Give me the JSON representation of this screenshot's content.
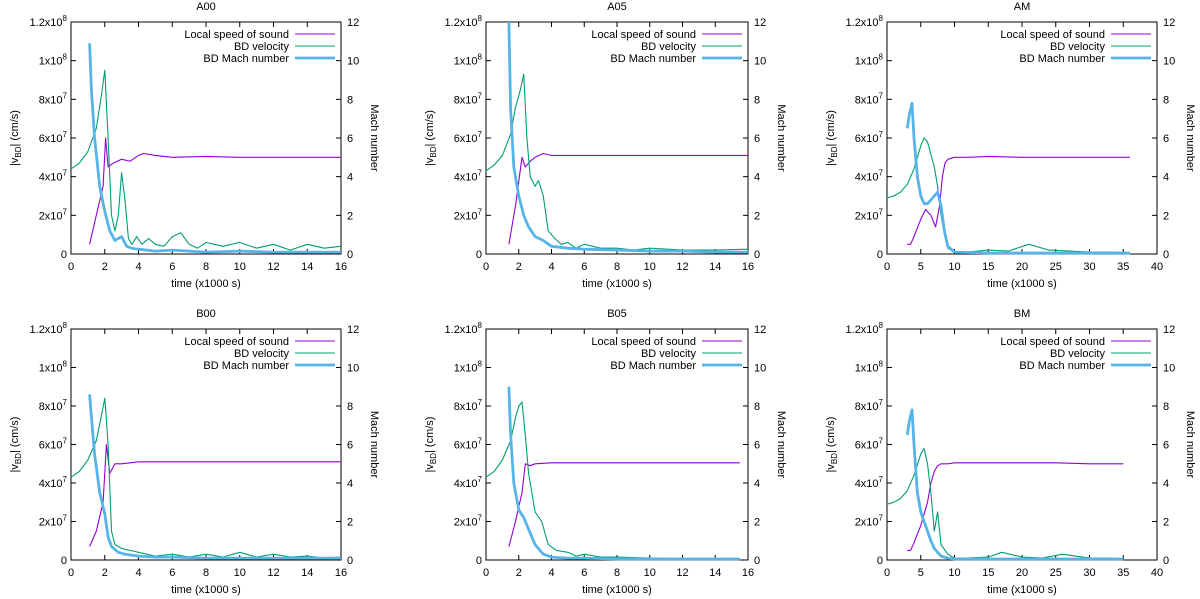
{
  "figure": {
    "left_ylabel_main": "|v",
    "left_ylabel_sub": "BD",
    "left_ylabel_tail": "| (cm/s)",
    "right_ylabel": "Mach number",
    "xlabel": "time (x1000 s)",
    "legend": [
      "Local speed of sound",
      "BD velocity",
      "BD Mach number"
    ],
    "left_tick_labels": [
      "0",
      "2x10^7",
      "4x10^7",
      "6x10^7",
      "8x10^7",
      "1x10^8",
      "1.2x10^8"
    ],
    "colors": {
      "sound": "#9400d3",
      "velocity": "#009e73",
      "mach": "#56b4e9",
      "frame": "#000000"
    }
  },
  "chart_data": [
    {
      "type": "line",
      "title": "A00",
      "xlabel": "time (x1000 s)",
      "ylabel": "|vBD| (cm/s)",
      "y2label": "Mach number",
      "xlim": [
        0,
        16
      ],
      "ylim": [
        0,
        120000000
      ],
      "y2lim": [
        0,
        12
      ],
      "xticks": [
        0,
        2,
        4,
        6,
        8,
        10,
        12,
        14,
        16
      ],
      "series": [
        {
          "name": "Local speed of sound",
          "axis": "left",
          "x": [
            1.1,
            1.5,
            1.9,
            2.05,
            2.2,
            2.5,
            3.0,
            3.5,
            4.0,
            4.3,
            5.0,
            6.0,
            8.0,
            10.0,
            12.0,
            14.0,
            16.0
          ],
          "y": [
            5000000,
            20000000,
            35000000,
            60000000,
            45000000,
            47000000,
            49000000,
            48000000,
            51000000,
            52000000,
            51000000,
            50000000,
            50500000,
            50000000,
            50000000,
            50000000,
            50000000
          ]
        },
        {
          "name": "BD velocity",
          "axis": "left",
          "x": [
            0,
            0.5,
            1.0,
            1.5,
            1.8,
            2.0,
            2.2,
            2.4,
            2.6,
            2.8,
            3.0,
            3.2,
            3.4,
            3.6,
            3.9,
            4.2,
            4.6,
            5.0,
            5.5,
            6.0,
            6.5,
            7.0,
            7.5,
            8.0,
            9.0,
            10.0,
            11.0,
            12.0,
            13.0,
            14.0,
            15.0,
            16.0
          ],
          "y": [
            44000000,
            47000000,
            53000000,
            65000000,
            82000000,
            95000000,
            60000000,
            20000000,
            12000000,
            20000000,
            42000000,
            28000000,
            8000000,
            5000000,
            9000000,
            5000000,
            8000000,
            5000000,
            4000000,
            9000000,
            11000000,
            5000000,
            3000000,
            6000000,
            4000000,
            6000000,
            3000000,
            5000000,
            2000000,
            5000000,
            3000000,
            4000000
          ]
        },
        {
          "name": "BD Mach number",
          "axis": "right",
          "x": [
            1.1,
            1.2,
            1.4,
            1.7,
            2.0,
            2.3,
            2.6,
            3.0,
            3.3,
            3.6,
            4.0,
            5.0,
            6.0,
            8.0,
            10.0,
            12.0,
            14.0,
            16.0
          ],
          "y": [
            10.9,
            8.6,
            6.0,
            3.5,
            2.2,
            1.2,
            0.7,
            0.9,
            0.4,
            0.3,
            0.25,
            0.15,
            0.2,
            0.1,
            0.15,
            0.1,
            0.1,
            0.1
          ]
        }
      ]
    },
    {
      "type": "line",
      "title": "A05",
      "xlabel": "time (x1000 s)",
      "ylabel": "|vBD| (cm/s)",
      "y2label": "Mach number",
      "xlim": [
        0,
        16
      ],
      "ylim": [
        0,
        120000000
      ],
      "y2lim": [
        0,
        12
      ],
      "xticks": [
        0,
        2,
        4,
        6,
        8,
        10,
        12,
        14,
        16
      ],
      "series": [
        {
          "name": "Local speed of sound",
          "axis": "left",
          "x": [
            1.4,
            1.8,
            2.2,
            2.4,
            2.7,
            3.0,
            3.5,
            4.0,
            6.0,
            8.0,
            10.0,
            12.0,
            14.0,
            16.0
          ],
          "y": [
            5000000,
            25000000,
            50000000,
            45000000,
            48000000,
            50000000,
            52000000,
            51000000,
            51000000,
            51000000,
            51000000,
            51000000,
            51000000,
            51000000
          ]
        },
        {
          "name": "BD velocity",
          "axis": "left",
          "x": [
            0,
            0.5,
            1.0,
            1.5,
            1.8,
            2.1,
            2.3,
            2.5,
            2.7,
            3.0,
            3.2,
            3.5,
            3.8,
            4.2,
            4.6,
            5.0,
            5.5,
            6.0,
            7.0,
            8.0,
            9.0,
            10.0,
            12.0,
            14.0,
            16.0
          ],
          "y": [
            43000000,
            46000000,
            51000000,
            62000000,
            76000000,
            85000000,
            93000000,
            60000000,
            40000000,
            35000000,
            38000000,
            30000000,
            12000000,
            8000000,
            5000000,
            6000000,
            3000000,
            5000000,
            3000000,
            3000000,
            2000000,
            3000000,
            2000000,
            2000000,
            2500000
          ]
        },
        {
          "name": "BD Mach number",
          "axis": "right",
          "x": [
            1.4,
            1.5,
            1.7,
            2.0,
            2.3,
            2.6,
            3.0,
            3.5,
            4.0,
            5.0,
            6.0,
            8.0,
            10.0,
            12.0,
            14.0,
            16.0
          ],
          "y": [
            12.0,
            7.5,
            4.5,
            3.0,
            2.0,
            1.4,
            0.9,
            0.7,
            0.4,
            0.3,
            0.25,
            0.2,
            0.15,
            0.15,
            0.1,
            0.1
          ]
        }
      ]
    },
    {
      "type": "line",
      "title": "AM",
      "xlabel": "time (x1000 s)",
      "ylabel": "|vBD| (cm/s)",
      "y2label": "Mach number",
      "xlim": [
        0,
        40
      ],
      "ylim": [
        0,
        120000000
      ],
      "y2lim": [
        0,
        12
      ],
      "xticks": [
        0,
        5,
        10,
        15,
        20,
        25,
        30,
        35,
        40
      ],
      "series": [
        {
          "name": "Local speed of sound",
          "axis": "left",
          "x": [
            3.0,
            3.5,
            4.0,
            5.0,
            5.7,
            6.5,
            7.2,
            7.8,
            8.2,
            8.6,
            9.0,
            10.0,
            12.0,
            15.0,
            20.0,
            25.0,
            30.0,
            36.0
          ],
          "y": [
            5000000,
            5000000,
            9000000,
            18000000,
            23000000,
            20000000,
            14000000,
            25000000,
            40000000,
            47000000,
            49000000,
            50000000,
            50000000,
            50500000,
            50000000,
            50000000,
            50000000,
            50000000
          ]
        },
        {
          "name": "BD velocity",
          "axis": "left",
          "x": [
            0,
            1.0,
            2.0,
            3.0,
            4.0,
            5.0,
            5.5,
            6.0,
            7.0,
            7.5,
            8.0,
            8.5,
            9.0,
            10.0,
            12.0,
            15.0,
            18.0,
            21.0,
            24.0,
            27.0,
            30.0,
            33.0,
            36.0
          ],
          "y": [
            29000000,
            30000000,
            32000000,
            36000000,
            44000000,
            56000000,
            60000000,
            58000000,
            45000000,
            35000000,
            20000000,
            10000000,
            3000000,
            1000000,
            1000000,
            2000000,
            1500000,
            5000000,
            2000000,
            1500000,
            1000000,
            1000000,
            500000
          ]
        },
        {
          "name": "BD Mach number",
          "axis": "right",
          "x": [
            3.0,
            3.3,
            3.7,
            4.0,
            4.5,
            5.0,
            5.5,
            6.0,
            6.5,
            7.0,
            7.5,
            8.0,
            8.5,
            9.0,
            10.0,
            15.0,
            20.0,
            25.0,
            30.0,
            36.0
          ],
          "y": [
            6.5,
            7.2,
            7.8,
            6.0,
            4.0,
            3.0,
            2.6,
            2.6,
            2.8,
            3.0,
            3.2,
            2.5,
            1.2,
            0.4,
            0.1,
            0.05,
            0.05,
            0.05,
            0.05,
            0.05
          ]
        }
      ]
    },
    {
      "type": "line",
      "title": "B00",
      "xlabel": "time (x1000 s)",
      "ylabel": "|vBD| (cm/s)",
      "y2label": "Mach number",
      "xlim": [
        0,
        16
      ],
      "ylim": [
        0,
        120000000
      ],
      "y2lim": [
        0,
        12
      ],
      "xticks": [
        0,
        2,
        4,
        6,
        8,
        10,
        12,
        14,
        16
      ],
      "series": [
        {
          "name": "Local speed of sound",
          "axis": "left",
          "x": [
            1.1,
            1.5,
            1.9,
            2.1,
            2.3,
            2.6,
            3.0,
            4.0,
            6.0,
            8.0,
            10.0,
            12.0,
            14.0,
            16.0
          ],
          "y": [
            7000000,
            15000000,
            30000000,
            60000000,
            45000000,
            50000000,
            50000000,
            51000000,
            51000000,
            51000000,
            51000000,
            51000000,
            51000000,
            51000000
          ]
        },
        {
          "name": "BD velocity",
          "axis": "left",
          "x": [
            0,
            0.5,
            1.0,
            1.5,
            1.8,
            2.0,
            2.2,
            2.4,
            2.6,
            3.0,
            3.5,
            4.0,
            5.0,
            6.0,
            7.0,
            8.0,
            9.0,
            10.0,
            11.0,
            12.0,
            13.0,
            14.0,
            15.0,
            16.0
          ],
          "y": [
            43000000,
            46000000,
            52000000,
            62000000,
            75000000,
            84000000,
            60000000,
            15000000,
            8000000,
            6000000,
            5000000,
            4000000,
            2000000,
            3000000,
            1500000,
            3000000,
            1500000,
            4000000,
            1500000,
            3000000,
            1500000,
            2000000,
            1000000,
            1500000
          ]
        },
        {
          "name": "BD Mach number",
          "axis": "right",
          "x": [
            1.1,
            1.2,
            1.4,
            1.7,
            2.0,
            2.2,
            2.4,
            2.8,
            3.2,
            4.0,
            5.0,
            6.0,
            8.0,
            10.0,
            12.0,
            14.0,
            16.0
          ],
          "y": [
            8.6,
            7.5,
            5.5,
            3.5,
            2.4,
            1.2,
            0.7,
            0.4,
            0.3,
            0.2,
            0.15,
            0.15,
            0.1,
            0.1,
            0.1,
            0.1,
            0.1
          ]
        }
      ]
    },
    {
      "type": "line",
      "title": "B05",
      "xlabel": "time (x1000 s)",
      "ylabel": "|vBD| (cm/s)",
      "y2label": "Mach number",
      "xlim": [
        0,
        16
      ],
      "ylim": [
        0,
        120000000
      ],
      "y2lim": [
        0,
        12
      ],
      "xticks": [
        0,
        2,
        4,
        6,
        8,
        10,
        12,
        14,
        16
      ],
      "series": [
        {
          "name": "Local speed of sound",
          "axis": "left",
          "x": [
            1.4,
            1.8,
            2.2,
            2.4,
            2.7,
            3.0,
            4.0,
            6.0,
            8.0,
            10.0,
            12.0,
            14.0,
            15.5
          ],
          "y": [
            7000000,
            20000000,
            35000000,
            50000000,
            49000000,
            50000000,
            50500000,
            50500000,
            50500000,
            50500000,
            50500000,
            50500000,
            50500000
          ]
        },
        {
          "name": "BD velocity",
          "axis": "left",
          "x": [
            0,
            0.5,
            1.0,
            1.5,
            1.8,
            2.0,
            2.2,
            2.4,
            2.6,
            3.0,
            3.4,
            3.8,
            4.3,
            5.0,
            5.5,
            6.0,
            7.0,
            8.0,
            10.0,
            12.0,
            14.0,
            15.5
          ],
          "y": [
            43000000,
            46000000,
            52000000,
            62000000,
            74000000,
            80000000,
            82000000,
            65000000,
            45000000,
            25000000,
            20000000,
            8000000,
            5000000,
            4000000,
            2000000,
            3000000,
            1500000,
            1500000,
            1000000,
            800000,
            600000,
            500000
          ]
        },
        {
          "name": "BD Mach number",
          "axis": "right",
          "x": [
            1.4,
            1.5,
            1.7,
            2.0,
            2.3,
            2.6,
            3.0,
            3.5,
            4.0,
            5.0,
            6.0,
            8.0,
            10.0,
            12.0,
            14.0,
            15.5
          ],
          "y": [
            9.0,
            6.5,
            4.0,
            2.6,
            2.2,
            1.6,
            0.8,
            0.3,
            0.15,
            0.1,
            0.1,
            0.05,
            0.05,
            0.05,
            0.05,
            0.05
          ]
        }
      ]
    },
    {
      "type": "line",
      "title": "BM",
      "xlabel": "time (x1000 s)",
      "ylabel": "|vBD| (cm/s)",
      "y2label": "Mach number",
      "xlim": [
        0,
        40
      ],
      "ylim": [
        0,
        120000000
      ],
      "y2lim": [
        0,
        12
      ],
      "xticks": [
        0,
        5,
        10,
        15,
        20,
        25,
        30,
        35,
        40
      ],
      "series": [
        {
          "name": "Local speed of sound",
          "axis": "left",
          "x": [
            3.0,
            3.5,
            4.0,
            5.0,
            6.0,
            6.5,
            7.0,
            7.5,
            8.0,
            9.0,
            10.0,
            15.0,
            20.0,
            25.0,
            30.0,
            35.0
          ],
          "y": [
            5000000,
            5000000,
            9000000,
            18000000,
            30000000,
            40000000,
            46000000,
            49000000,
            50000000,
            50000000,
            50500000,
            50500000,
            50500000,
            50500000,
            50000000,
            50000000
          ]
        },
        {
          "name": "BD velocity",
          "axis": "left",
          "x": [
            0,
            1.0,
            2.0,
            3.0,
            4.0,
            5.0,
            5.5,
            6.0,
            6.5,
            7.0,
            7.5,
            8.0,
            9.0,
            10.0,
            12.0,
            15.0,
            17.0,
            20.0,
            23.0,
            26.0,
            30.0,
            33.0,
            35.0
          ],
          "y": [
            29000000,
            30000000,
            32000000,
            36000000,
            44000000,
            55000000,
            58000000,
            50000000,
            35000000,
            15000000,
            25000000,
            8000000,
            3000000,
            1000000,
            1000000,
            1500000,
            4000000,
            1500000,
            1000000,
            3000000,
            1000000,
            1000000,
            500000
          ]
        },
        {
          "name": "BD Mach number",
          "axis": "right",
          "x": [
            3.0,
            3.3,
            3.7,
            4.0,
            4.5,
            5.0,
            5.5,
            6.0,
            6.5,
            7.0,
            8.0,
            9.0,
            10.0,
            15.0,
            20.0,
            25.0,
            30.0,
            35.0
          ],
          "y": [
            6.5,
            7.2,
            7.8,
            6.0,
            3.5,
            2.5,
            2.0,
            1.5,
            1.0,
            0.6,
            0.2,
            0.1,
            0.05,
            0.05,
            0.05,
            0.05,
            0.05,
            0.05
          ]
        }
      ]
    }
  ]
}
